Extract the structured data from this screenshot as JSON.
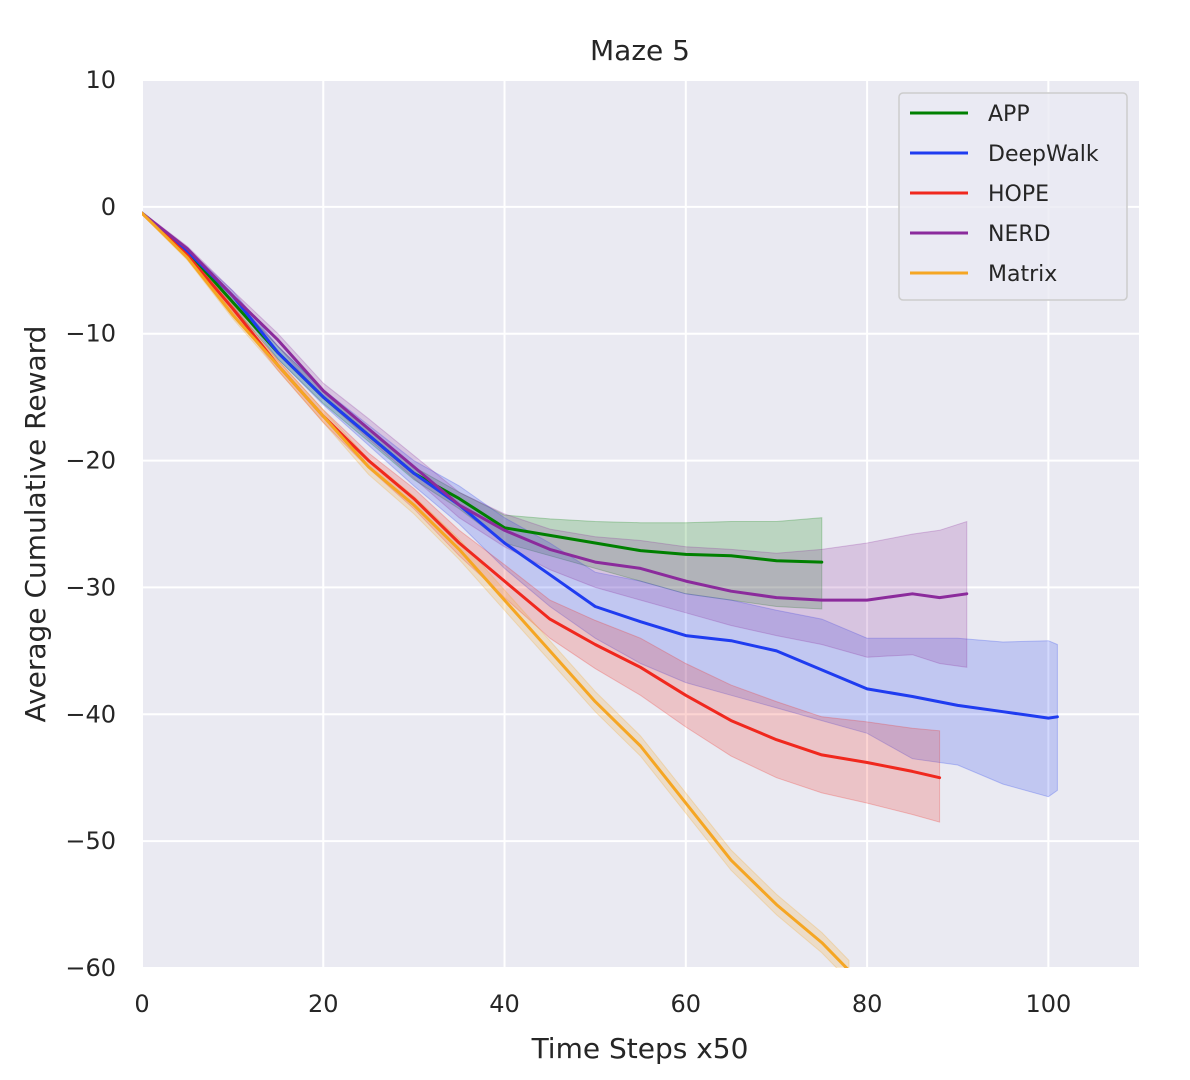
{
  "chart_data": {
    "type": "line",
    "title": "Maze 5",
    "xlabel": "Time Steps x50",
    "ylabel": "Average Cumulative Reward",
    "xlim": [
      0,
      110
    ],
    "ylim": [
      -60,
      10
    ],
    "xticks": [
      0,
      20,
      40,
      60,
      80,
      100
    ],
    "yticks": [
      -60,
      -50,
      -40,
      -30,
      -20,
      -10,
      0,
      10
    ],
    "ytick_labels": [
      "−60",
      "−50",
      "−40",
      "−30",
      "−20",
      "−10",
      "0",
      "10"
    ],
    "grid": true,
    "legend_position": "top-right",
    "series": [
      {
        "name": "APP",
        "color": "#008000",
        "x": [
          0,
          5,
          10,
          15,
          20,
          25,
          30,
          35,
          40,
          45,
          50,
          55,
          60,
          65,
          70,
          75
        ],
        "y": [
          -0.5,
          -3.5,
          -7.5,
          -11.5,
          -15.0,
          -18.0,
          -21.0,
          -23.0,
          -25.3,
          -25.9,
          -26.5,
          -27.1,
          -27.4,
          -27.5,
          -27.9,
          -28.0
        ],
        "lower": [
          -0.6,
          -3.7,
          -7.9,
          -12.0,
          -15.5,
          -18.5,
          -21.5,
          -23.8,
          -26.5,
          -27.5,
          -28.5,
          -29.5,
          -30.5,
          -31.0,
          -31.5,
          -31.7
        ],
        "upper": [
          -0.4,
          -3.3,
          -7.1,
          -11.0,
          -14.5,
          -17.5,
          -20.5,
          -22.5,
          -24.3,
          -24.6,
          -24.8,
          -24.9,
          -24.9,
          -24.8,
          -24.8,
          -24.5
        ]
      },
      {
        "name": "DeepWalk",
        "color": "#1f3cf0",
        "x": [
          0,
          5,
          10,
          15,
          20,
          25,
          30,
          35,
          40,
          45,
          50,
          55,
          60,
          65,
          70,
          75,
          80,
          85,
          90,
          95,
          100,
          101
        ],
        "y": [
          -0.5,
          -3.5,
          -7.0,
          -11.5,
          -15.0,
          -18.0,
          -21.0,
          -23.5,
          -26.5,
          -29.0,
          -31.5,
          -32.7,
          -33.8,
          -34.2,
          -35.0,
          -36.5,
          -38.0,
          -38.6,
          -39.3,
          -39.8,
          -40.3,
          -40.2
        ],
        "lower": [
          -0.6,
          -3.7,
          -7.4,
          -12.0,
          -15.6,
          -18.8,
          -22.0,
          -25.0,
          -28.5,
          -31.5,
          -34.0,
          -36.0,
          -37.5,
          -38.5,
          -39.5,
          -40.5,
          -41.5,
          -43.5,
          -44.0,
          -45.5,
          -46.5,
          -46.0
        ],
        "upper": [
          -0.4,
          -3.3,
          -6.6,
          -11.0,
          -14.4,
          -17.2,
          -20.0,
          -22.0,
          -24.5,
          -26.5,
          -28.8,
          -29.5,
          -30.5,
          -31.0,
          -31.8,
          -32.5,
          -34.0,
          -34.0,
          -34.0,
          -34.3,
          -34.2,
          -34.5
        ]
      },
      {
        "name": "HOPE",
        "color": "#f0281e",
        "x": [
          0,
          5,
          10,
          15,
          20,
          25,
          30,
          35,
          40,
          45,
          50,
          55,
          60,
          65,
          70,
          75,
          80,
          85,
          88
        ],
        "y": [
          -0.5,
          -3.8,
          -8.0,
          -12.5,
          -16.5,
          -20.0,
          -23.0,
          -26.5,
          -29.5,
          -32.5,
          -34.5,
          -36.3,
          -38.5,
          -40.5,
          -42.0,
          -43.2,
          -43.8,
          -44.5,
          -45.0
        ],
        "lower": [
          -0.6,
          -4.0,
          -8.3,
          -12.9,
          -17.0,
          -20.6,
          -23.8,
          -27.5,
          -30.8,
          -34.0,
          -36.4,
          -38.5,
          -41.0,
          -43.3,
          -45.0,
          -46.2,
          -47.0,
          -47.9,
          -48.5
        ],
        "upper": [
          -0.4,
          -3.6,
          -7.7,
          -12.1,
          -16.0,
          -19.4,
          -22.2,
          -25.5,
          -28.2,
          -31.0,
          -32.6,
          -34.0,
          -36.0,
          -37.7,
          -39.0,
          -40.2,
          -40.6,
          -41.1,
          -41.3
        ]
      },
      {
        "name": "NERD",
        "color": "#8b2b9c",
        "x": [
          0,
          5,
          10,
          15,
          20,
          25,
          30,
          35,
          40,
          45,
          50,
          55,
          60,
          65,
          70,
          75,
          80,
          85,
          88,
          91
        ],
        "y": [
          -0.5,
          -3.3,
          -7.0,
          -10.5,
          -14.5,
          -17.5,
          -20.5,
          -23.5,
          -25.5,
          -27.0,
          -28.0,
          -28.5,
          -29.5,
          -30.3,
          -30.8,
          -31.0,
          -31.0,
          -30.5,
          -30.8,
          -30.5
        ],
        "lower": [
          -0.6,
          -3.5,
          -7.4,
          -11.0,
          -15.1,
          -18.3,
          -21.4,
          -24.5,
          -26.8,
          -28.6,
          -30.0,
          -31.0,
          -32.0,
          -33.0,
          -33.8,
          -34.5,
          -35.5,
          -35.3,
          -36.0,
          -36.3
        ],
        "upper": [
          -0.4,
          -3.1,
          -6.6,
          -10.0,
          -13.9,
          -16.7,
          -19.6,
          -22.5,
          -24.2,
          -25.4,
          -26.0,
          -26.3,
          -26.8,
          -27.0,
          -27.3,
          -27.0,
          -26.5,
          -25.8,
          -25.5,
          -24.8
        ]
      },
      {
        "name": "Matrix",
        "color": "#f5a623",
        "x": [
          0,
          5,
          10,
          15,
          20,
          25,
          30,
          35,
          40,
          45,
          50,
          55,
          60,
          65,
          70,
          75,
          78
        ],
        "y": [
          -0.5,
          -4.0,
          -8.5,
          -12.5,
          -16.5,
          -20.5,
          -23.5,
          -27.0,
          -31.0,
          -35.0,
          -39.0,
          -42.5,
          -47.0,
          -51.5,
          -55.0,
          -58.0,
          -60.2
        ],
        "lower": [
          -0.6,
          -4.2,
          -8.8,
          -12.9,
          -17.0,
          -21.1,
          -24.2,
          -27.8,
          -31.8,
          -35.8,
          -39.8,
          -43.3,
          -47.8,
          -52.3,
          -55.8,
          -58.8,
          -61.0
        ],
        "upper": [
          -0.4,
          -3.8,
          -8.2,
          -12.1,
          -16.0,
          -19.9,
          -22.8,
          -26.2,
          -30.2,
          -34.2,
          -38.2,
          -41.7,
          -46.2,
          -50.7,
          -54.2,
          -57.2,
          -59.4
        ]
      }
    ]
  }
}
